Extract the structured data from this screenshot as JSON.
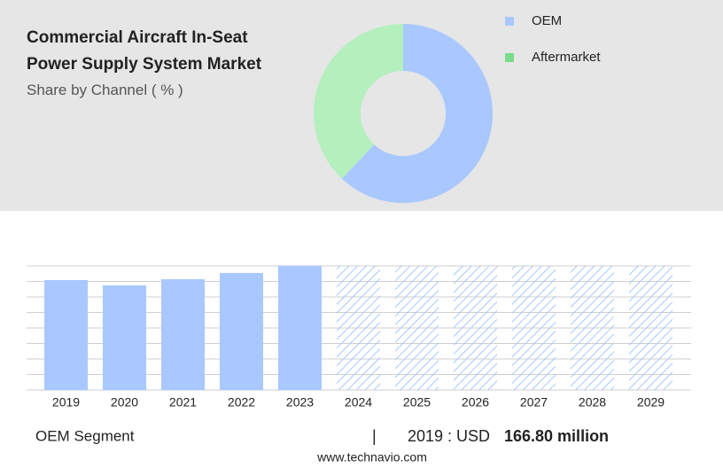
{
  "chart_data": [
    {
      "type": "pie",
      "title": "Commercial Aircraft In-Seat Power Supply System Market",
      "subtitle": "Share by Channel ( % )",
      "categories": [
        "OEM",
        "Aftermarket"
      ],
      "values": [
        62,
        38
      ],
      "colors": [
        "#a8c8ff",
        "#b4efbe"
      ],
      "legend_colors": [
        "#a8c8ff",
        "#77dd8c"
      ]
    },
    {
      "type": "bar",
      "categories": [
        "2019",
        "2020",
        "2021",
        "2022",
        "2023",
        "2024",
        "2025",
        "2026",
        "2027",
        "2028",
        "2029"
      ],
      "values": [
        166.8,
        158.7,
        168.1,
        177.6,
        188.3,
        null,
        null,
        null,
        null,
        null,
        null
      ],
      "color": "#a8c8ff",
      "ylim": [
        0,
        188.3
      ],
      "grid": true
    }
  ],
  "footer": {
    "segment": "OEM Segment",
    "separator": "|",
    "year_text": "2019 : USD",
    "value_text": "166.80 million",
    "source": "www.technavio.com"
  }
}
